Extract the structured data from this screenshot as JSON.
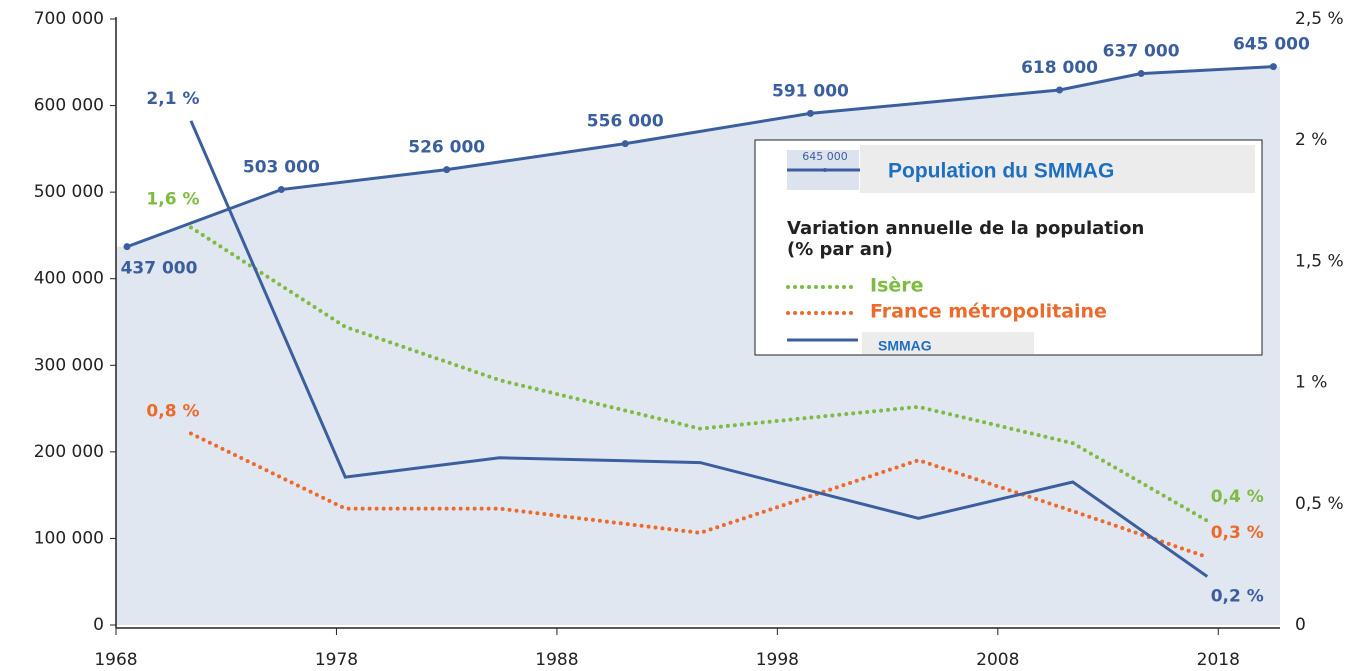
{
  "chart_data": {
    "type": "line",
    "xlim": [
      1968,
      2020.8
    ],
    "xticks": [
      1968,
      1978,
      1988,
      1998,
      2008,
      2018
    ],
    "ylim": [
      0,
      700000
    ],
    "yticks": [
      {
        "value": 0,
        "label": "0"
      },
      {
        "value": 100000,
        "label": "100 000"
      },
      {
        "value": 200000,
        "label": "200 000"
      },
      {
        "value": 300000,
        "label": "300 000"
      },
      {
        "value": 400000,
        "label": "400 000"
      },
      {
        "value": 500000,
        "label": "500 000"
      },
      {
        "value": 600000,
        "label": "600 000"
      },
      {
        "value": 700000,
        "label": "700 000"
      }
    ],
    "y2lim": [
      0,
      2.5
    ],
    "y2ticks": [
      0,
      {
        "value": 0.5,
        "label": "0,5 %"
      },
      {
        "value": 1,
        "label": "1 %"
      },
      {
        "value": 1.5,
        "label": "1,5 %"
      },
      {
        "value": 2,
        "label": "2 %"
      },
      {
        "value": 2.5,
        "label": "2,5 %"
      }
    ],
    "legend_icon_label": "645 000",
    "legend_title": [
      "Variation annuelle de la population",
      "(% par an)"
    ],
    "series": [
      {
        "name": "Population du SMMAG",
        "color": "#3b5f9e",
        "area_color": "#e1e7f0",
        "style": "solid",
        "x": [
          1968.5,
          1975.5,
          1983,
          1991.1,
          1999.5,
          2010.8,
          2014.5,
          2020.5
        ],
        "values": [
          437000,
          503000,
          526000,
          556000,
          591000,
          618000,
          637000,
          645000
        ],
        "value_labels": [
          "437 000",
          "503 000",
          "526 000",
          "556 000",
          "591 000",
          "618 000",
          "637 000",
          "645 000"
        ]
      },
      {
        "name": "Isère",
        "color": "#7dbb42",
        "style": "dotted",
        "axis": "y2",
        "x": [
          1971.4,
          1978.4,
          1985.4,
          1994.5,
          2004.4,
          2011.4,
          2017.5
        ],
        "values": [
          1.64,
          1.23,
          1.01,
          0.81,
          0.9,
          0.75,
          0.43
        ],
        "value_labels": [
          "1,6 %",
          null,
          null,
          null,
          null,
          null,
          "0,4 %"
        ]
      },
      {
        "name": "France métropolitaine",
        "color": "#ec6a2c",
        "style": "dotted",
        "axis": "y2",
        "x": [
          1971.4,
          1978.4,
          1985.4,
          1994.5,
          2004.4,
          2011.4,
          2017.5
        ],
        "values": [
          0.79,
          0.48,
          0.48,
          0.38,
          0.68,
          0.47,
          0.28
        ],
        "value_labels": [
          "0,8 %",
          null,
          null,
          null,
          null,
          null,
          "0,3 %"
        ]
      },
      {
        "name": "SMMAG",
        "color": "#3b5f9e",
        "style": "solid",
        "axis": "y2",
        "x": [
          1971.4,
          1978.4,
          1985.4,
          1994.5,
          2004.4,
          2011.4,
          2017.5
        ],
        "values": [
          2.08,
          0.61,
          0.69,
          0.67,
          0.44,
          0.59,
          0.2
        ],
        "value_labels": [
          "2,1 %",
          null,
          null,
          null,
          null,
          null,
          "0,2 %"
        ]
      }
    ]
  }
}
